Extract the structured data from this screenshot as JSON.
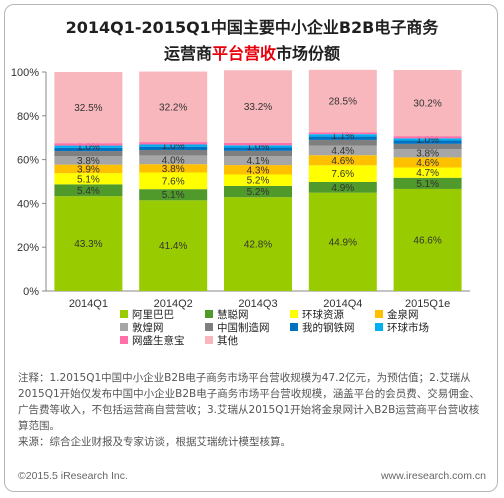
{
  "title": {
    "line1": "2014Q1-2015Q1中国主要中小企业B2B电子商务",
    "line2_prefix": "运营商",
    "line2_highlight": "平台营收",
    "line2_suffix": "市场份额"
  },
  "chart_data": {
    "type": "bar",
    "stacked": true,
    "categories": [
      "2014Q1",
      "2014Q2",
      "2014Q3",
      "2014Q4",
      "2015Q1e"
    ],
    "ylim": [
      0,
      100
    ],
    "yticks": [
      "0%",
      "20%",
      "40%",
      "60%",
      "80%",
      "100%"
    ],
    "grid": false,
    "legend_position": "bottom",
    "series": [
      {
        "name": "阿里巴巴",
        "color": "#99cc00",
        "values": [
          43.3,
          41.4,
          42.8,
          44.9,
          46.6
        ],
        "labels": [
          "43.3%",
          "41.4%",
          "42.8%",
          "44.9%",
          "46.6%"
        ]
      },
      {
        "name": "慧聪网",
        "color": "#4f9a2a",
        "values": [
          5.4,
          5.1,
          5.2,
          4.9,
          5.1
        ],
        "labels": [
          "5.4%",
          "5.1%",
          "5.2%",
          "4.9%",
          "5.1%"
        ]
      },
      {
        "name": "环球资源",
        "color": "#ffff00",
        "values": [
          5.1,
          7.6,
          5.2,
          7.6,
          4.7
        ],
        "labels": [
          "5.1%",
          "7.6%",
          "5.2%",
          "7.6%",
          "4.7%"
        ]
      },
      {
        "name": "金泉网",
        "color": "#ffc000",
        "values": [
          3.9,
          3.8,
          4.3,
          4.6,
          4.6
        ],
        "labels": [
          "3.9%",
          "3.8%",
          "4.3%",
          "4.6%",
          "4.6%"
        ]
      },
      {
        "name": "敦煌网",
        "color": "#a6a6a6",
        "values": [
          3.8,
          4.0,
          4.1,
          4.4,
          3.8
        ],
        "labels": [
          "3.8%",
          "4.0%",
          "4.1%",
          "4.4%",
          "3.8%"
        ]
      },
      {
        "name": "中国制造网",
        "color": "#7f7f7f",
        "values": [
          2.4,
          2.5,
          2.4,
          2.6,
          2.4
        ],
        "labels": [
          "",
          "",
          "",
          "",
          ""
        ]
      },
      {
        "name": "我的钢铁网",
        "color": "#0070c0",
        "values": [
          1.5,
          1.5,
          1.5,
          1.5,
          1.5
        ],
        "labels": [
          "",
          "",
          "",
          "",
          ""
        ]
      },
      {
        "name": "环球市场",
        "color": "#00b0f0",
        "values": [
          1.0,
          1.0,
          1.0,
          1.1,
          1.0
        ],
        "labels": [
          "1.0%",
          "1.0%",
          "1.0%",
          "1.1%",
          "1.0%"
        ]
      },
      {
        "name": "网盛生意宝",
        "color": "#ff6fa8",
        "values": [
          1.1,
          1.1,
          1.1,
          0.9,
          1.0
        ],
        "labels": [
          "",
          "",
          "",
          "",
          ""
        ]
      },
      {
        "name": "其他",
        "color": "#f7b7bd",
        "values": [
          32.5,
          32.2,
          33.2,
          28.5,
          30.2
        ],
        "labels": [
          "32.5%",
          "32.2%",
          "33.2%",
          "28.5%",
          "30.2%"
        ]
      }
    ]
  },
  "notes": {
    "line1": "注释：1.2015Q1中国中小企业B2B电子商务市场平台营收规模为47.2亿元，为预估值；2.艾瑞从",
    "line2": "2015Q1开始仅发布中国中小企业B2B电子商务市场平台营收规模，涵盖平台的会员费、交易佣金、",
    "line3": "广告费等收入，不包括运营商自营营收；3.艾瑞从2015Q1开始将金泉网计入B2B运营商平台营收核",
    "line4": "算范围。",
    "source": "来源：综合企业财报及专家访谈，根据艾瑞统计模型核算。"
  },
  "footer": {
    "copyright": "©2015.5 iResearch Inc.",
    "url": "www.iresearch.com.cn"
  }
}
